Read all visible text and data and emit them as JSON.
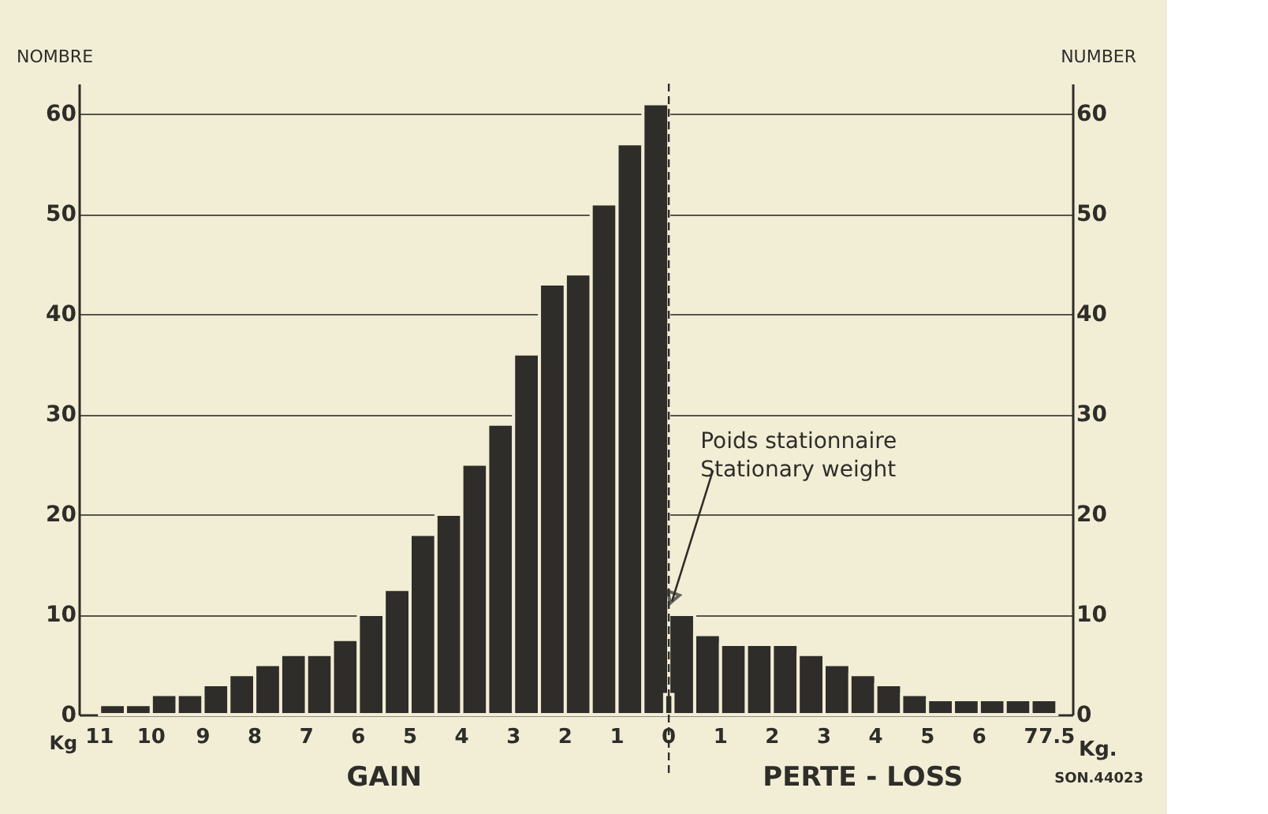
{
  "chart_data": {
    "type": "histogram",
    "ylabel": "NOMBRE",
    "y2label": "NUMBER",
    "bins": [
      -11,
      -10.5,
      -10,
      -9.5,
      -9,
      -8.5,
      -8,
      -7.5,
      -7,
      -6.5,
      -6,
      -5.5,
      -5,
      -4.5,
      -4,
      -3.5,
      -3,
      -2.5,
      -2,
      -1.5,
      -1,
      -0.5,
      0,
      0.5,
      1,
      1.5,
      2,
      2.5,
      3,
      3.5,
      4,
      4.5,
      5,
      5.5,
      6,
      6.5,
      7,
      7.5
    ],
    "series": [
      {
        "color": "#2f2d29",
        "values": [
          1,
          1,
          2,
          2,
          3,
          4,
          5,
          6,
          6,
          7.5,
          10,
          12.5,
          18,
          20,
          25,
          29,
          36,
          43,
          44,
          51,
          57,
          61,
          10,
          8,
          7,
          7,
          7,
          6,
          5,
          4,
          3,
          2,
          1.5,
          1.5,
          1.5,
          1.5,
          1.5
        ]
      },
      {
        "type": "bar",
        "color": "#2f2d29",
        "x": [
          0
        ],
        "values": [
          2
        ]
      }
    ],
    "xlim": [
      -11.4,
      7.8
    ],
    "ylim": [
      0,
      63
    ],
    "y2lim": [
      0,
      63
    ],
    "xticks": [
      {
        "value": -11,
        "label": "11"
      },
      {
        "value": -10,
        "label": "10"
      },
      {
        "value": -9,
        "label": "9"
      },
      {
        "value": -8,
        "label": "8"
      },
      {
        "value": -7,
        "label": "7"
      },
      {
        "value": -6,
        "label": "6"
      },
      {
        "value": -5,
        "label": "5"
      },
      {
        "value": -4,
        "label": "4"
      },
      {
        "value": -3,
        "label": "3"
      },
      {
        "value": -2,
        "label": "2"
      },
      {
        "value": -1,
        "label": "1"
      },
      0,
      1,
      2,
      3,
      4,
      5,
      6,
      7,
      7.5
    ],
    "yticks": [
      0,
      10,
      20,
      30,
      40,
      50,
      60
    ],
    "y2ticks": [
      0,
      10,
      20,
      30,
      40,
      50,
      60
    ],
    "grid": "y",
    "ref_lines": [
      {
        "axis": "x",
        "value": 0,
        "line_style": "dashed",
        "color": "#2f2d29"
      }
    ],
    "annotations": [
      "Kg",
      "Kg.",
      "GAIN",
      "PERTE - LOSS",
      {
        "text": "Poids stationnaire\nStationary weight",
        "x": 0,
        "y": 11
      },
      "SON.44023"
    ]
  }
}
